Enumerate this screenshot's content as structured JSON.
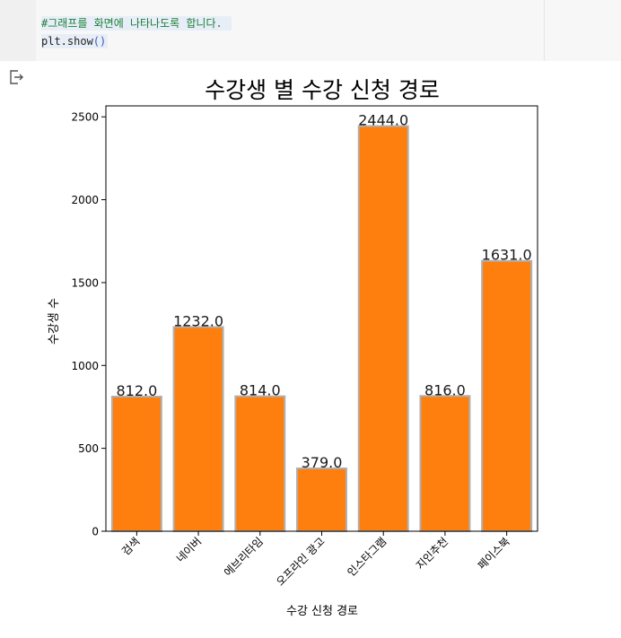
{
  "code": {
    "line1": "#그래프를 화면에 나타나도록 합니다.",
    "line2_prefix": "plt.show",
    "line2_parens": "()"
  },
  "output": {
    "icon": "output-redirect-icon"
  },
  "colors": {
    "bar_fill": "#ff7f0e",
    "bar_edge": "#b0b0b0",
    "axis": "#000000"
  },
  "chart_data": {
    "type": "bar",
    "title": "수강생 별 수강 신청 경로",
    "xlabel": "수강 신청 경로",
    "ylabel": "수강생 수",
    "categories": [
      "검색",
      "네이버",
      "에브리타임",
      "오프라인 광고",
      "인스타그램",
      "지인추천",
      "페이스북"
    ],
    "values": [
      812.0,
      1232.0,
      814.0,
      379.0,
      2444.0,
      816.0,
      1631.0
    ],
    "data_labels": [
      "812.0",
      "1232.0",
      "814.0",
      "379.0",
      "2444.0",
      "816.0",
      "1631.0"
    ],
    "yticks": [
      "0",
      "500",
      "1000",
      "1500",
      "2000",
      "2500"
    ],
    "ylim": [
      0,
      2566
    ],
    "grid": false,
    "legend": "none"
  }
}
